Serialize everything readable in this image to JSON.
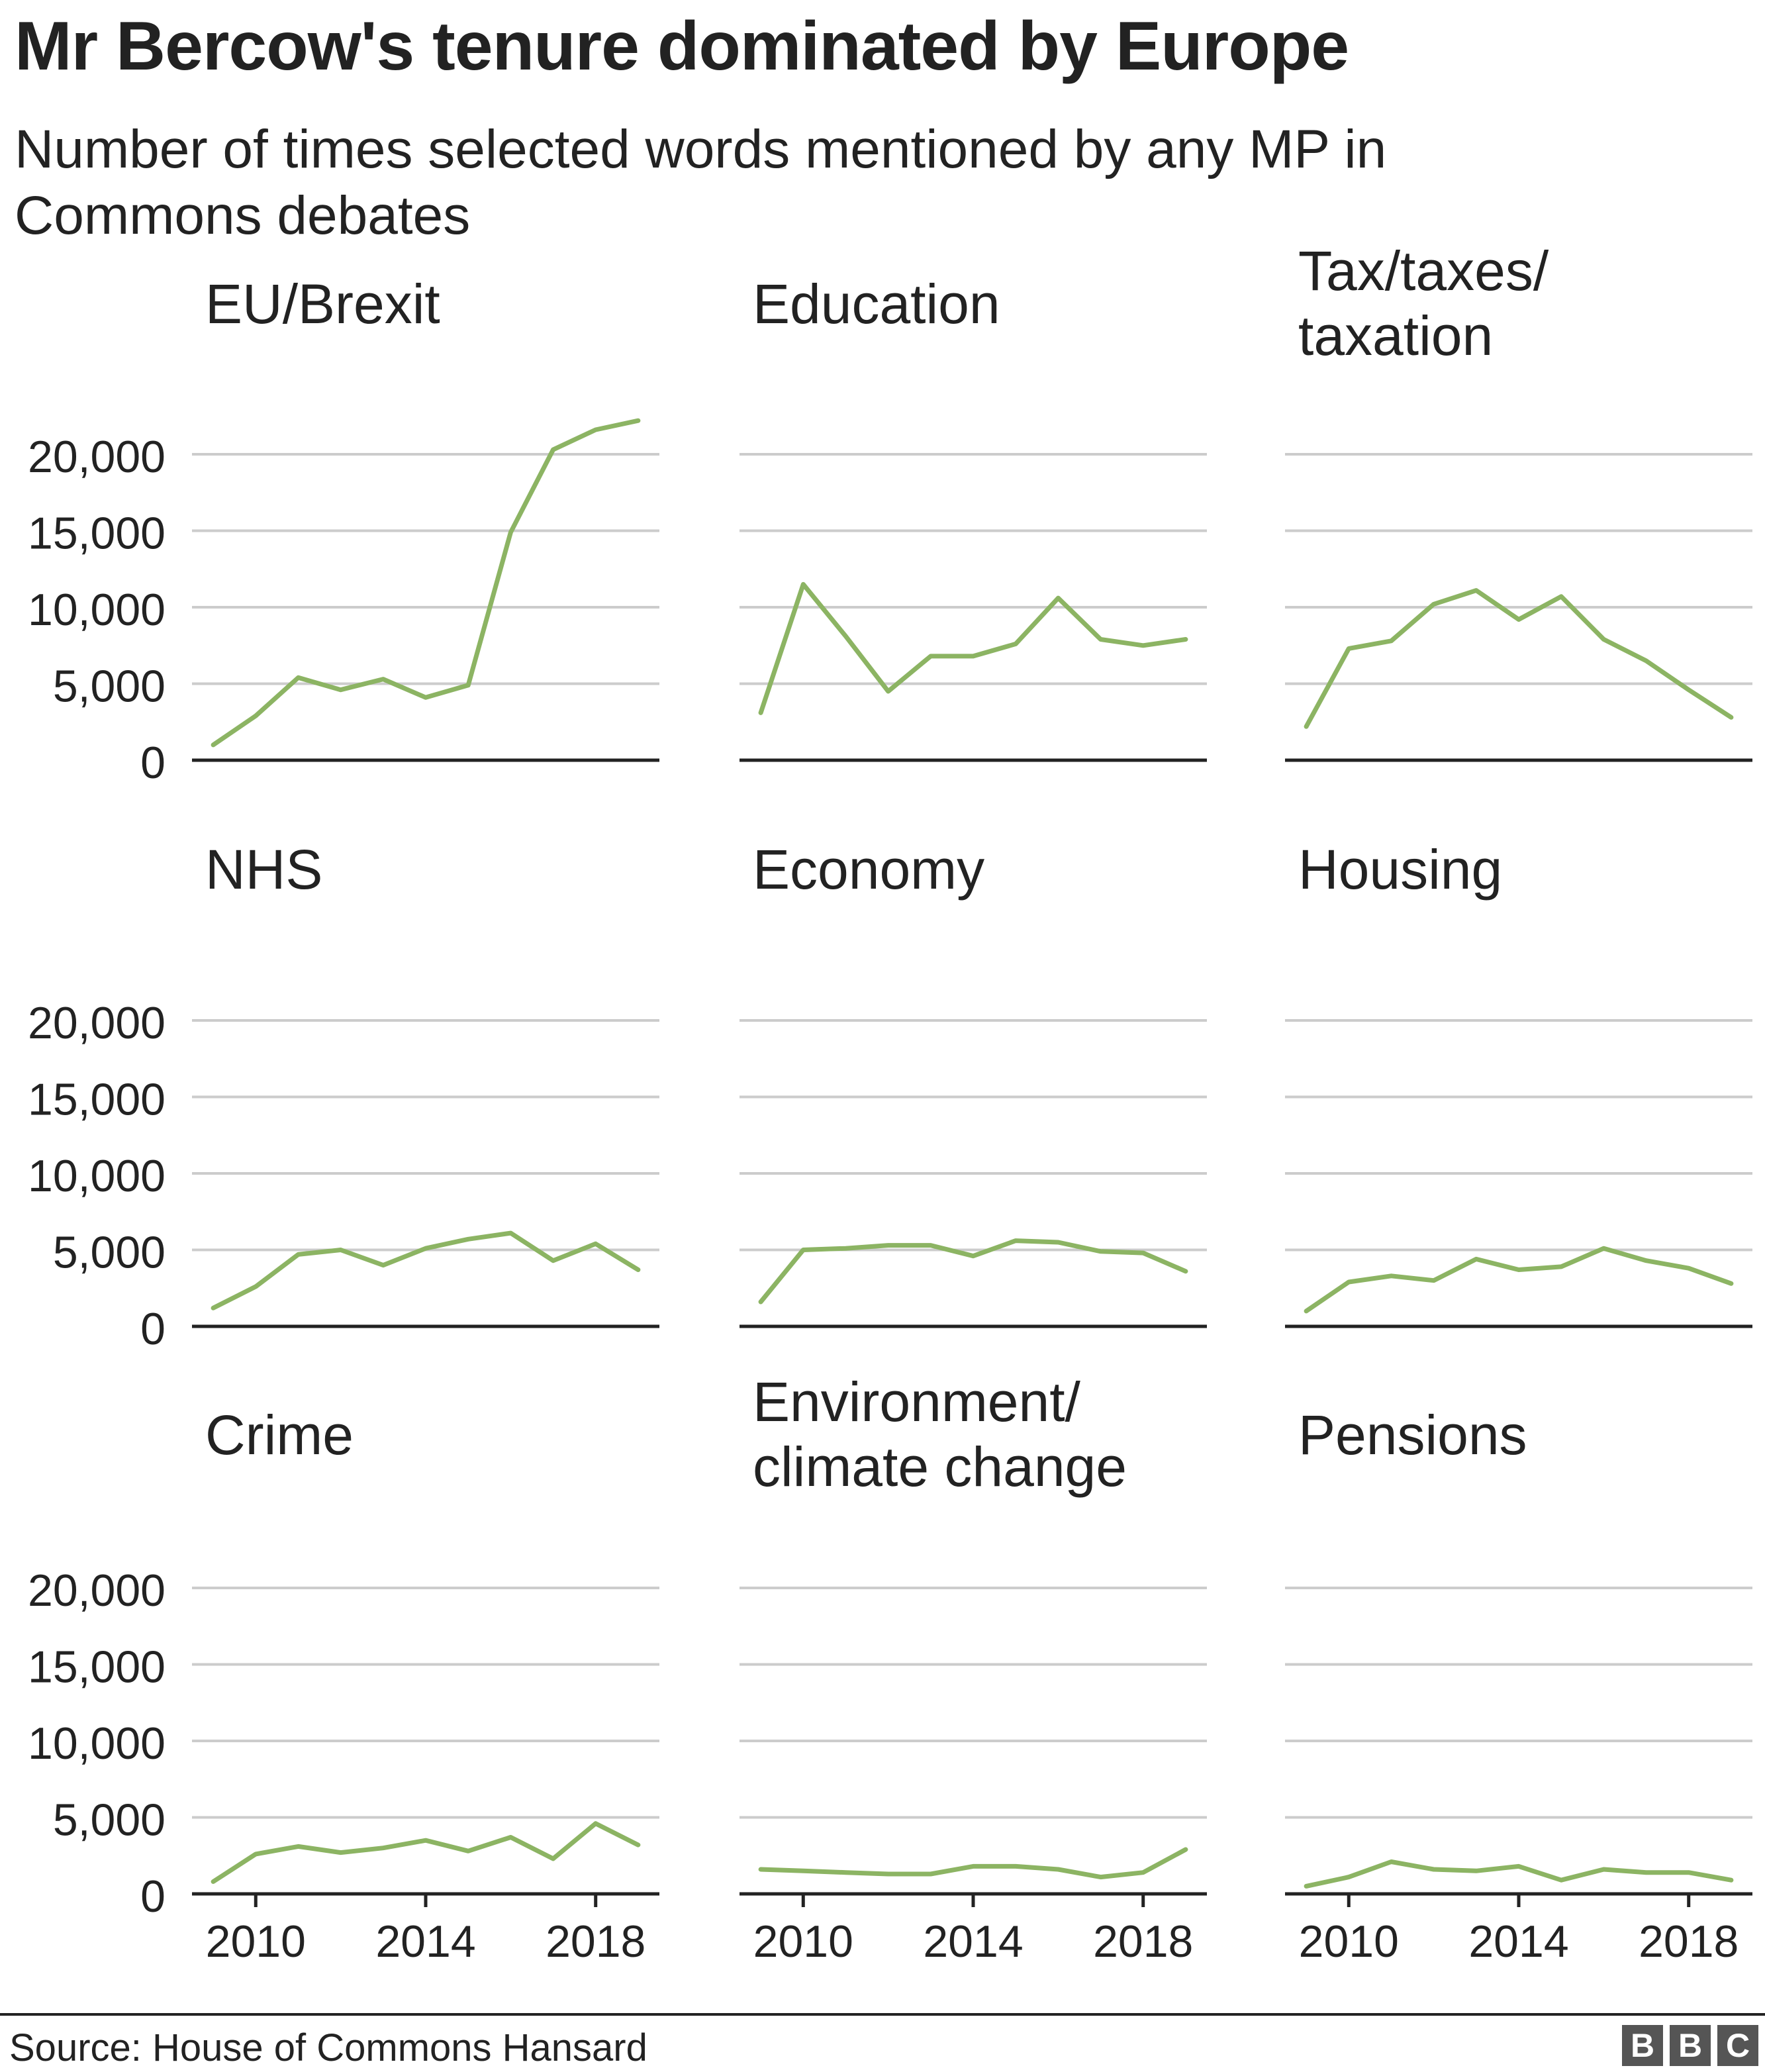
{
  "title": "Mr Bercow's tenure dominated by Europe",
  "subtitle": "Number of times selected words mentioned by any MP in Commons debates",
  "source": "Source: House of Commons Hansard",
  "logo": [
    "B",
    "B",
    "C"
  ],
  "colors": {
    "line": "#8CB463",
    "grid": "#cccccc",
    "axis": "#222222",
    "text": "#222222"
  },
  "chart_data": [
    {
      "type": "line",
      "title": "EU/Brexit",
      "x": [
        2009,
        2010,
        2011,
        2012,
        2013,
        2014,
        2015,
        2016,
        2017,
        2018,
        2019
      ],
      "values": [
        1000,
        2900,
        5400,
        4600,
        5300,
        4100,
        4900,
        14900,
        20300,
        21600,
        22200
      ],
      "ylim": [
        0,
        20000
      ],
      "yticks": [
        "20,000",
        "15,000",
        "10,000",
        "5,000",
        "0"
      ],
      "xticks": [
        "2010",
        "2014",
        "2018"
      ],
      "grid": true
    },
    {
      "type": "line",
      "title": "Education",
      "x": [
        2009,
        2010,
        2011,
        2012,
        2013,
        2014,
        2015,
        2016,
        2017,
        2018,
        2019
      ],
      "values": [
        3100,
        11500,
        8100,
        4500,
        6800,
        6800,
        7600,
        10600,
        7900,
        7500,
        7900
      ],
      "ylim": [
        0,
        20000
      ],
      "yticks": [
        "20,000",
        "15,000",
        "10,000",
        "5,000",
        "0"
      ],
      "xticks": [
        "2010",
        "2014",
        "2018"
      ],
      "grid": true
    },
    {
      "type": "line",
      "title": "Tax/taxes/ taxation",
      "x": [
        2009,
        2010,
        2011,
        2012,
        2013,
        2014,
        2015,
        2016,
        2017,
        2018,
        2019
      ],
      "values": [
        2200,
        7300,
        7800,
        10200,
        11100,
        9200,
        10700,
        7900,
        6500,
        4600,
        2800
      ],
      "ylim": [
        0,
        20000
      ],
      "yticks": [
        "20,000",
        "15,000",
        "10,000",
        "5,000",
        "0"
      ],
      "xticks": [
        "2010",
        "2014",
        "2018"
      ],
      "grid": true
    },
    {
      "type": "line",
      "title": "NHS",
      "x": [
        2009,
        2010,
        2011,
        2012,
        2013,
        2014,
        2015,
        2016,
        2017,
        2018,
        2019
      ],
      "values": [
        1200,
        2600,
        4700,
        5000,
        4000,
        5100,
        5700,
        6100,
        4300,
        5400,
        3700
      ],
      "ylim": [
        0,
        20000
      ],
      "yticks": [
        "20,000",
        "15,000",
        "10,000",
        "5,000",
        "0"
      ],
      "xticks": [
        "2010",
        "2014",
        "2018"
      ],
      "grid": true
    },
    {
      "type": "line",
      "title": "Economy",
      "x": [
        2009,
        2010,
        2011,
        2012,
        2013,
        2014,
        2015,
        2016,
        2017,
        2018,
        2019
      ],
      "values": [
        1600,
        5000,
        5100,
        5300,
        5300,
        4600,
        5600,
        5500,
        4900,
        4800,
        3600
      ],
      "ylim": [
        0,
        20000
      ],
      "yticks": [
        "20,000",
        "15,000",
        "10,000",
        "5,000",
        "0"
      ],
      "xticks": [
        "2010",
        "2014",
        "2018"
      ],
      "grid": true
    },
    {
      "type": "line",
      "title": "Housing",
      "x": [
        2009,
        2010,
        2011,
        2012,
        2013,
        2014,
        2015,
        2016,
        2017,
        2018,
        2019
      ],
      "values": [
        1000,
        2900,
        3300,
        3000,
        4400,
        3700,
        3900,
        5100,
        4300,
        3800,
        2800
      ],
      "ylim": [
        0,
        20000
      ],
      "yticks": [
        "20,000",
        "15,000",
        "10,000",
        "5,000",
        "0"
      ],
      "xticks": [
        "2010",
        "2014",
        "2018"
      ],
      "grid": true
    },
    {
      "type": "line",
      "title": "Crime",
      "x": [
        2009,
        2010,
        2011,
        2012,
        2013,
        2014,
        2015,
        2016,
        2017,
        2018,
        2019
      ],
      "values": [
        800,
        2600,
        3100,
        2700,
        3000,
        3500,
        2800,
        3700,
        2300,
        4600,
        3200
      ],
      "ylim": [
        0,
        20000
      ],
      "yticks": [
        "20,000",
        "15,000",
        "10,000",
        "5,000",
        "0"
      ],
      "xticks": [
        "2010",
        "2014",
        "2018"
      ],
      "grid": true
    },
    {
      "type": "line",
      "title": "Environment/ climate change",
      "x": [
        2009,
        2010,
        2011,
        2012,
        2013,
        2014,
        2015,
        2016,
        2017,
        2018,
        2019
      ],
      "values": [
        1600,
        1500,
        1400,
        1300,
        1300,
        1800,
        1800,
        1600,
        1100,
        1400,
        2900
      ],
      "ylim": [
        0,
        20000
      ],
      "yticks": [
        "20,000",
        "15,000",
        "10,000",
        "5,000",
        "0"
      ],
      "xticks": [
        "2010",
        "2014",
        "2018"
      ],
      "grid": true
    },
    {
      "type": "line",
      "title": "Pensions",
      "x": [
        2009,
        2010,
        2011,
        2012,
        2013,
        2014,
        2015,
        2016,
        2017,
        2018,
        2019
      ],
      "values": [
        500,
        1100,
        2100,
        1600,
        1500,
        1800,
        900,
        1600,
        1400,
        1400,
        900
      ],
      "ylim": [
        0,
        20000
      ],
      "yticks": [
        "20,000",
        "15,000",
        "10,000",
        "5,000",
        "0"
      ],
      "xticks": [
        "2010",
        "2014",
        "2018"
      ],
      "grid": true
    }
  ]
}
